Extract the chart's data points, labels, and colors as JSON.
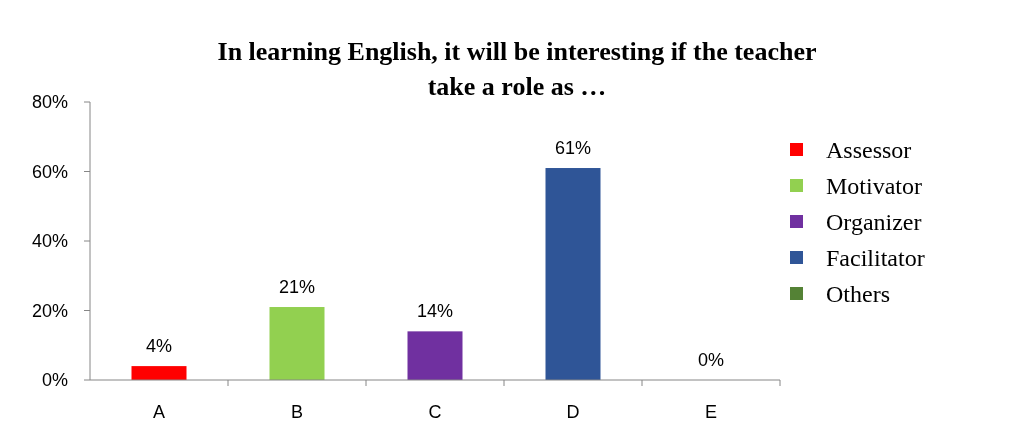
{
  "chart_data": {
    "type": "bar",
    "title": "In learning English, it will be interesting if the teacher take a role as …",
    "categories": [
      "A",
      "B",
      "C",
      "D",
      "E"
    ],
    "series": [
      {
        "name": "Assessor",
        "color": "#ff0000",
        "values": [
          4,
          null,
          null,
          null,
          null
        ]
      },
      {
        "name": "Motivator",
        "color": "#92d050",
        "values": [
          null,
          21,
          null,
          null,
          null
        ]
      },
      {
        "name": "Organizer",
        "color": "#7030a0",
        "values": [
          null,
          null,
          14,
          null,
          null
        ]
      },
      {
        "name": "Facilitator",
        "color": "#2f5597",
        "values": [
          null,
          null,
          null,
          61,
          null
        ]
      },
      {
        "name": "Others",
        "color": "#548235",
        "values": [
          null,
          null,
          null,
          null,
          0
        ]
      }
    ],
    "value_labels": [
      "4%",
      "21%",
      "14%",
      "61%",
      "0%"
    ],
    "ylim": [
      0,
      80
    ],
    "yticks": [
      {
        "value": 0,
        "label": "0%"
      },
      {
        "value": 20,
        "label": "20%"
      },
      {
        "value": 40,
        "label": "40%"
      },
      {
        "value": 60,
        "label": "60%"
      },
      {
        "value": 80,
        "label": "80%"
      }
    ],
    "grid": false,
    "legend": "right"
  }
}
